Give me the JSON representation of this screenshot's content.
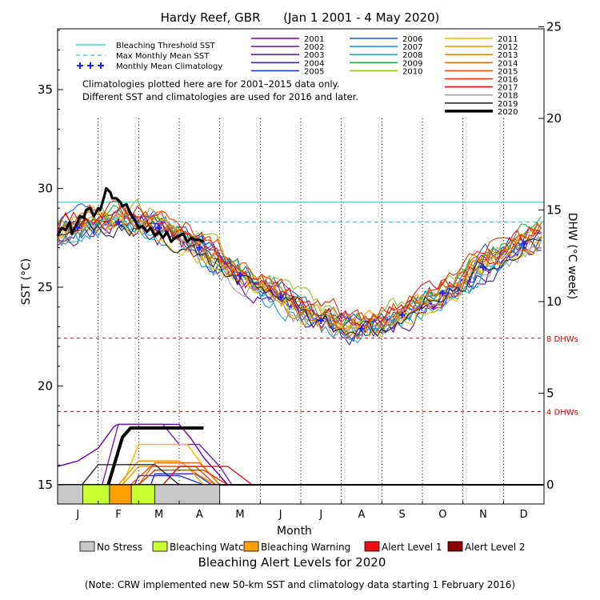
{
  "chart_data": {
    "type": "line",
    "title": "Hardy Reef, GBR      (Jan 1 2001 - 4 May 2020)",
    "xlabel": "Month",
    "ylabel": "SST (°C)",
    "y2label": "DHW (°C week)",
    "months": [
      "J",
      "F",
      "M",
      "A",
      "M",
      "J",
      "J",
      "A",
      "S",
      "O",
      "N",
      "D"
    ],
    "ylim": [
      15,
      39
    ],
    "yticks": [
      15,
      20,
      25,
      30,
      35
    ],
    "y2lim": [
      0,
      25
    ],
    "y2ticks": [
      0,
      5,
      10,
      15,
      20,
      25
    ],
    "bleaching_threshold_sst": 29.3,
    "max_monthly_mean_sst": 28.3,
    "dhw_thresholds": [
      {
        "value": 8,
        "label": "8 DHWs"
      },
      {
        "value": 4,
        "label": "4 DHWs"
      }
    ],
    "legend": {
      "threshold_label": "Bleaching Threshold SST",
      "mmm_label": "Max Monthly Mean SST",
      "climatology_label": "Monthly Mean Climatology",
      "note_line1": "Climatologies plotted here are for 2001–2015 data only.",
      "note_line2": "Different SST and climatologies are used for 2016 and later."
    },
    "climatology": {
      "x": [
        0.5,
        1.5,
        2.5,
        3.5,
        4.5,
        5.5,
        6.5,
        7.5,
        8.5,
        9.5,
        10.5,
        11.5
      ],
      "y": [
        28.0,
        28.3,
        28.0,
        27.0,
        25.6,
        24.5,
        23.3,
        22.9,
        23.6,
        24.7,
        26.0,
        27.2
      ]
    },
    "series": [
      {
        "name": "2001",
        "color": "#6a00a8",
        "offset": -0.3,
        "dhw": [
          [
            0,
            1.0
          ],
          [
            0.5,
            1.3
          ],
          [
            1.0,
            2.0
          ],
          [
            1.4,
            3.2
          ],
          [
            1.5,
            3.3
          ],
          [
            2.5,
            3.3
          ],
          [
            3.0,
            3.3
          ],
          [
            3.3,
            2.5
          ],
          [
            3.6,
            1.5
          ],
          [
            4.0,
            0.5
          ],
          [
            4.2,
            0
          ]
        ]
      },
      {
        "name": "2002",
        "color": "#7020b0",
        "offset": 0.1,
        "dhw": [
          [
            1.1,
            0
          ],
          [
            1.5,
            3.3
          ],
          [
            1.6,
            3.3
          ],
          [
            2.6,
            3.3
          ],
          [
            3.0,
            2.2
          ],
          [
            3.5,
            2.2
          ],
          [
            4.0,
            1.0
          ],
          [
            4.3,
            0
          ]
        ]
      },
      {
        "name": "2003",
        "color": "#5a24a0",
        "offset": 0.0,
        "dhw": []
      },
      {
        "name": "2004",
        "color": "#2c2cbb",
        "offset": -0.2,
        "dhw": [
          [
            2.3,
            0
          ],
          [
            2.4,
            0.6
          ],
          [
            3.4,
            0.6
          ],
          [
            3.8,
            0
          ]
        ]
      },
      {
        "name": "2005",
        "color": "#1c3ccc",
        "offset": 0.2,
        "dhw": [
          [
            1.9,
            0
          ],
          [
            2.0,
            0.5
          ],
          [
            3.0,
            0.5
          ],
          [
            3.6,
            0
          ]
        ]
      },
      {
        "name": "2006",
        "color": "#1858e0",
        "offset": 0.4,
        "dhw": []
      },
      {
        "name": "2007",
        "color": "#1c9adc",
        "offset": -0.4,
        "dhw": []
      },
      {
        "name": "2008",
        "color": "#18b4b4",
        "offset": -0.1,
        "dhw": []
      },
      {
        "name": "2009",
        "color": "#20b040",
        "offset": 0.3,
        "dhw": []
      },
      {
        "name": "2010",
        "color": "#8cc828",
        "offset": 0.5,
        "dhw": []
      },
      {
        "name": "2011",
        "color": "#f0c000",
        "offset": -0.3,
        "dhw": [
          [
            1.6,
            0
          ],
          [
            2.0,
            2.2
          ],
          [
            3.2,
            2.2
          ],
          [
            3.6,
            1.0
          ],
          [
            4.0,
            0
          ]
        ]
      },
      {
        "name": "2012",
        "color": "#f0a000",
        "offset": 0.1,
        "dhw": [
          [
            1.6,
            0
          ],
          [
            2.0,
            1.0
          ],
          [
            3.2,
            1.0
          ],
          [
            3.6,
            0
          ]
        ]
      },
      {
        "name": "2013",
        "color": "#f08c00",
        "offset": 0.2,
        "dhw": [
          [
            1.5,
            0
          ],
          [
            2.0,
            1.3
          ],
          [
            3.0,
            1.3
          ],
          [
            3.5,
            0.5
          ],
          [
            3.9,
            0
          ]
        ]
      },
      {
        "name": "2014",
        "color": "#e86c00",
        "offset": 0.0,
        "dhw": [
          [
            2.0,
            0
          ],
          [
            2.4,
            1.2
          ],
          [
            3.5,
            1.2
          ],
          [
            4.0,
            0
          ]
        ]
      },
      {
        "name": "2015",
        "color": "#e85000",
        "offset": 0.4,
        "dhw": [
          [
            1.8,
            0
          ],
          [
            2.3,
            1.0
          ],
          [
            3.4,
            1.0
          ],
          [
            3.9,
            0
          ]
        ]
      },
      {
        "name": "2016",
        "color": "#e83000",
        "offset": 0.6,
        "dhw": [
          [
            2.0,
            0
          ],
          [
            2.4,
            0.8
          ],
          [
            3.6,
            0.8
          ],
          [
            4.2,
            0
          ]
        ]
      },
      {
        "name": "2017",
        "color": "#dd1010",
        "offset": 0.3,
        "dhw": [
          [
            2.6,
            0
          ],
          [
            3.0,
            1.0
          ],
          [
            4.2,
            1.0
          ],
          [
            4.8,
            0
          ]
        ]
      },
      {
        "name": "2018",
        "color": "#a0a0a0",
        "offset": -0.2,
        "dhw": []
      },
      {
        "name": "2019",
        "color": "#2a2a2a",
        "offset": -0.1,
        "dhw": [
          [
            0.6,
            0
          ],
          [
            1.0,
            1.1
          ],
          [
            2.4,
            1.1
          ],
          [
            3.0,
            0
          ]
        ]
      },
      {
        "name": "2020",
        "color": "#000000",
        "offset": 0.0,
        "dhw": [
          [
            1.25,
            0
          ],
          [
            1.6,
            2.6
          ],
          [
            1.8,
            3.1
          ],
          [
            3.6,
            3.1
          ]
        ]
      }
    ],
    "sst_2020": {
      "x": [
        0.0,
        0.1,
        0.2,
        0.3,
        0.35,
        0.45,
        0.55,
        0.65,
        0.7,
        0.8,
        0.9,
        1.0,
        1.05,
        1.15,
        1.2,
        1.3,
        1.35,
        1.45,
        1.55,
        1.6,
        1.7,
        1.8,
        1.9,
        2.0,
        2.1,
        2.2,
        2.3,
        2.4,
        2.5,
        2.6,
        2.7,
        2.8,
        2.9,
        3.0,
        3.1,
        3.2,
        3.3,
        3.4,
        3.5,
        3.6
      ],
      "y": [
        27.6,
        28.0,
        27.9,
        28.3,
        27.7,
        28.1,
        28.6,
        28.5,
        28.9,
        29.0,
        28.6,
        29.0,
        28.9,
        29.6,
        30.0,
        29.8,
        29.5,
        29.5,
        29.3,
        29.1,
        29.2,
        28.7,
        28.4,
        28.0,
        28.1,
        27.8,
        28.0,
        27.6,
        27.8,
        27.5,
        27.8,
        27.3,
        27.5,
        27.6,
        27.7,
        27.3,
        27.5,
        27.4,
        27.4,
        27.3
      ]
    },
    "alert_2020": {
      "title": "Bleaching Alert Levels for 2020",
      "segments": [
        {
          "from": 0.0,
          "to": 0.62,
          "level": "No Stress"
        },
        {
          "from": 0.62,
          "to": 1.28,
          "level": "Bleaching Watch"
        },
        {
          "from": 1.28,
          "to": 1.82,
          "level": "Bleaching Warning"
        },
        {
          "from": 1.82,
          "to": 2.4,
          "level": "Bleaching Watch"
        },
        {
          "from": 2.4,
          "to": 4.0,
          "level": "No Stress"
        }
      ]
    },
    "alert_legend": [
      {
        "label": "No Stress",
        "color": "#c8c8c8"
      },
      {
        "label": "Bleaching Watch",
        "color": "#c8ff30"
      },
      {
        "label": "Bleaching Warning",
        "color": "#ffa000"
      },
      {
        "label": "Alert Level 1",
        "color": "#ee1010"
      },
      {
        "label": "Alert Level 2",
        "color": "#8c0000"
      }
    ],
    "footnote": "(Note: CRW implemented new 50-km SST and climatology data starting 1 February 2016)"
  }
}
